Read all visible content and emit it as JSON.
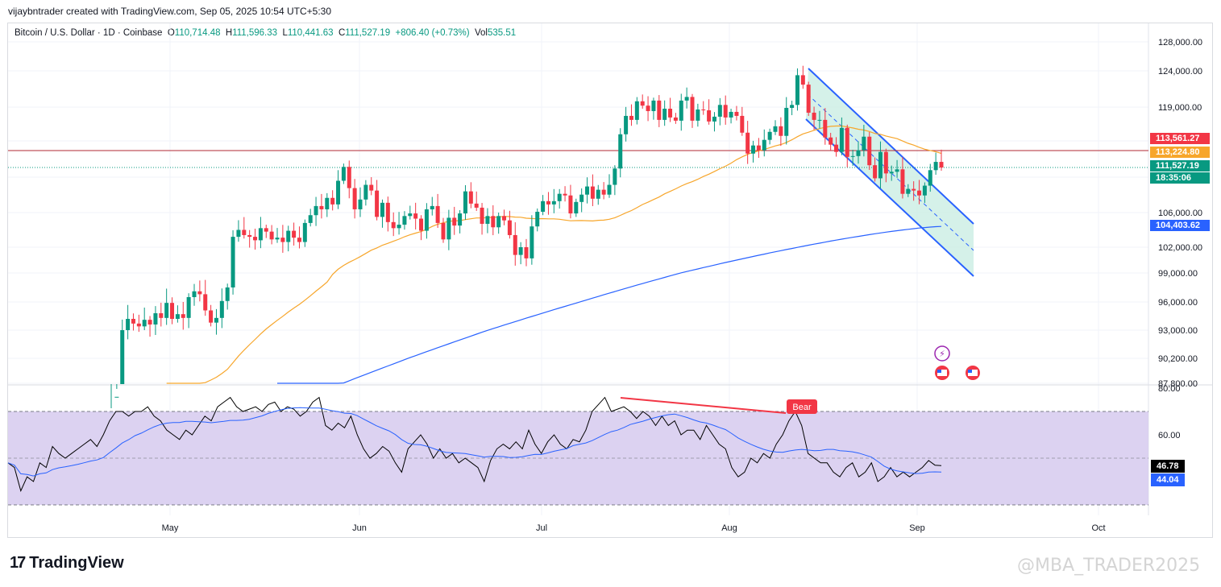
{
  "header": {
    "author_line": "vijaybntrader created with TradingView.com, Sep 05, 2025 10:54 UTC+5:30"
  },
  "legend": {
    "symbol": "Bitcoin / U.S. Dollar · 1D · Coinbase",
    "open_label": "O",
    "open": "110,714.48",
    "high_label": "H",
    "high": "111,596.33",
    "low_label": "L",
    "low": "110,441.63",
    "close_label": "C",
    "close": "111,527.19",
    "change": "+806.40 (+0.73%)",
    "volume_label": "Vol",
    "volume": "535.51"
  },
  "price_tags": {
    "red_line": "113,561.27",
    "ma_orange": "113,224.80",
    "last_price": "111,527.19",
    "countdown": "18:35:06",
    "ma_blue": "104,403.62"
  },
  "rsi_tags": {
    "rsi": "46.78",
    "rsi_ma": "44.04"
  },
  "bear_label": "Bear",
  "brand": {
    "logo_text": "TradingView",
    "watermark": "@MBA_TRADER2025"
  },
  "colors": {
    "up": "#089981",
    "down": "#f23645",
    "ma_orange": "#f7a62b",
    "ma_blue": "#2962ff",
    "rsi_line": "#000000",
    "rsi_ma": "#2962ff",
    "rsi_band": "#d8cdf0",
    "channel": "#2962ff",
    "channel_fill": "#cbeee4"
  },
  "chart_data": [
    {
      "type": "candlestick",
      "title": "Bitcoin / U.S. Dollar · 1D · Coinbase",
      "x_labels": [
        "May",
        "Jun",
        "Jul",
        "Aug",
        "Sep",
        "Oct"
      ],
      "y_ticks": [
        87800,
        90200,
        93000,
        96000,
        99000,
        102000,
        106000,
        119000,
        124000,
        128000
      ],
      "y_tick_labels": [
        "87,800.00",
        "90,200.00",
        "93,000.00",
        "96,000.00",
        "99,000.00",
        "102,000.00",
        "106,000.00",
        "119,000.00",
        "124,000.00",
        "128,000.00"
      ],
      "close_series": [
        85000,
        86500,
        93000,
        94200,
        93700,
        93400,
        94100,
        93600,
        94800,
        94300,
        95900,
        94200,
        94700,
        94300,
        96500,
        97100,
        96800,
        95100,
        93800,
        94300,
        96100,
        97500,
        103200,
        104000,
        103400,
        103200,
        102800,
        104200,
        103800,
        102900,
        103100,
        102600,
        103900,
        103100,
        102600,
        104800,
        105700,
        106800,
        106400,
        107800,
        107000,
        109900,
        111600,
        109000,
        106400,
        107600,
        109400,
        108700,
        105500,
        107200,
        104900,
        104200,
        104600,
        105600,
        105900,
        105300,
        103900,
        106400,
        106800,
        104800,
        102900,
        105400,
        104500,
        105900,
        108600,
        107100,
        106600,
        104700,
        105600,
        104300,
        105600,
        105100,
        103400,
        101100,
        102000,
        100700,
        104400,
        106100,
        107400,
        107000,
        107400,
        108300,
        108100,
        105900,
        107300,
        108200,
        109200,
        107700,
        108800,
        108200,
        109400,
        111400,
        115600,
        117900,
        117400,
        119800,
        119200,
        118500,
        119900,
        117400,
        118800,
        117700,
        117300,
        119900,
        120400,
        117300,
        118700,
        118600,
        117200,
        117800,
        119300,
        117700,
        118400,
        117900,
        115800,
        113200,
        114200,
        113600,
        114900,
        115900,
        116600,
        115400,
        118900,
        119300,
        123400,
        122100,
        118300,
        117400,
        117400,
        115200,
        114300,
        113400,
        116400,
        112800,
        112900,
        113600,
        115300,
        111800,
        110200,
        113400,
        110800,
        111000,
        111300,
        108300,
        108900,
        108700,
        108100,
        109300,
        111200,
        112200,
        111527
      ],
      "sma_50_end": 113224.8,
      "sma_200_end": 104403.62,
      "horizontal_line": 113561.27,
      "last_price": 111527.19
    },
    {
      "type": "line",
      "title": "RSI",
      "y_ticks": [
        60,
        80
      ],
      "levels": [
        30,
        70,
        50
      ],
      "rsi_series": [
        48,
        46,
        36,
        42,
        40,
        48,
        46,
        55,
        52,
        50,
        52,
        54,
        56,
        58,
        55,
        60,
        66,
        70,
        70,
        68,
        70,
        70,
        72,
        68,
        66,
        62,
        60,
        58,
        62,
        60,
        64,
        68,
        66,
        72,
        74,
        76,
        72,
        70,
        71,
        72,
        70,
        73,
        74,
        70,
        72,
        71,
        68,
        70,
        74,
        76,
        64,
        62,
        65,
        63,
        68,
        60,
        54,
        50,
        52,
        55,
        53,
        48,
        44,
        54,
        57,
        60,
        56,
        50,
        54,
        50,
        52,
        48,
        50,
        48,
        46,
        40,
        49,
        54,
        56,
        54,
        57,
        54,
        62,
        56,
        52,
        57,
        60,
        56,
        54,
        58,
        57,
        62,
        70,
        73,
        76,
        70,
        71,
        72,
        70,
        67,
        70,
        68,
        64,
        68,
        64,
        66,
        60,
        62,
        62,
        58,
        64,
        60,
        56,
        54,
        46,
        42,
        44,
        50,
        48,
        52,
        50,
        56,
        60,
        66,
        70,
        64,
        52,
        50,
        48,
        48,
        44,
        42,
        46,
        48,
        42,
        44,
        48,
        40,
        42,
        46,
        42,
        44,
        42,
        44,
        46,
        49,
        47,
        46.78
      ],
      "rsi_ma_end": 44.04
    }
  ]
}
